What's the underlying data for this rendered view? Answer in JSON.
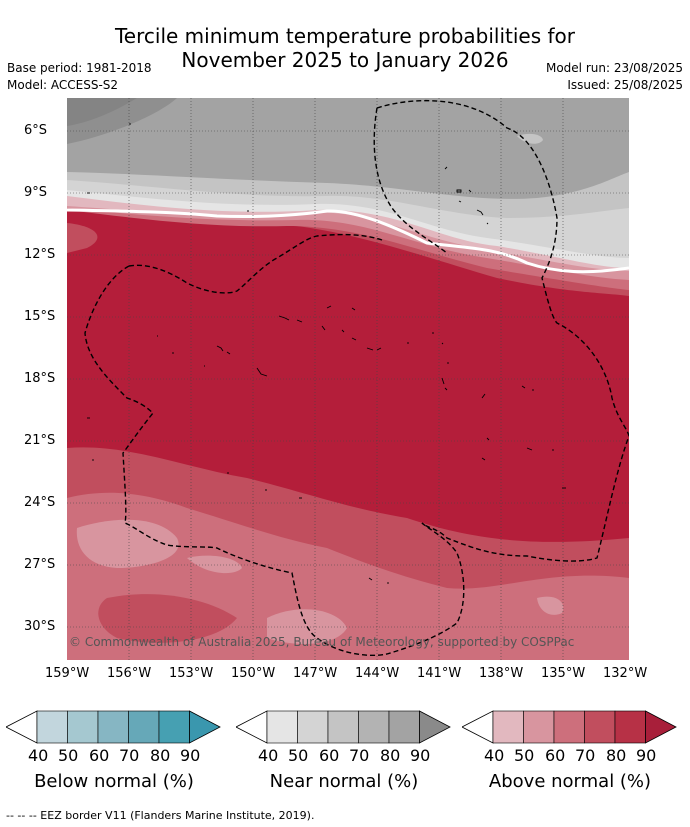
{
  "title_line1": "Tercile minimum temperature probabilities for",
  "title_line2": "November 2025 to January 2026",
  "base_period": "Base period: 1981-2018",
  "model": "Model: ACCESS-S2",
  "model_run": "Model run: 23/08/2025",
  "issued": "Issued: 25/08/2025",
  "map": {
    "lat_ticks": [
      "6°S",
      "9°S",
      "12°S",
      "15°S",
      "18°S",
      "21°S",
      "24°S",
      "27°S",
      "30°S"
    ],
    "lon_ticks": [
      "159°W",
      "156°W",
      "153°W",
      "150°W",
      "147°W",
      "144°W",
      "141°W",
      "138°W",
      "135°W",
      "132°W"
    ],
    "lat_range": [
      -31.5,
      -4.5
    ],
    "lon_range": [
      -159,
      -132
    ],
    "copyright": "© Commonwealth of Australia 2025, Bureau of Meteorology, supported by COSPPac"
  },
  "colorbars": [
    {
      "title": "Below normal (%)",
      "labels": [
        "40",
        "50",
        "60",
        "70",
        "80",
        "90"
      ],
      "colors": [
        "#c2d6dd",
        "#a5c8d0",
        "#86b6c3",
        "#66a8b8",
        "#46a0b2"
      ]
    },
    {
      "title": "Near normal (%)",
      "labels": [
        "40",
        "50",
        "60",
        "70",
        "80",
        "90"
      ],
      "colors": [
        "#e5e5e5",
        "#d4d4d4",
        "#c4c4c4",
        "#b3b3b3",
        "#a3a3a3"
      ]
    },
    {
      "title": "Above normal (%)",
      "labels": [
        "40",
        "50",
        "60",
        "70",
        "80",
        "90"
      ],
      "colors": [
        "#e2b8bf",
        "#d8959f",
        "#cd6f7c",
        "#c14e5e",
        "#b73146"
      ]
    }
  ],
  "eez_legend": "--  --  -- EEZ border V11 (Flanders Marine Institute, 2019)."
}
